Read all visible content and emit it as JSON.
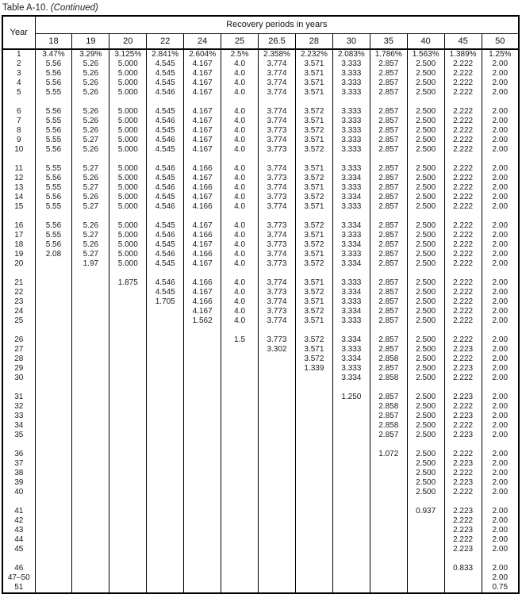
{
  "title": {
    "main": "Table A-10.",
    "continued": "(Continued)"
  },
  "table": {
    "year_header": "Year",
    "group_header": "Recovery periods in years",
    "columns": [
      "18",
      "19",
      "20",
      "22",
      "24",
      "25",
      "26.5",
      "28",
      "30",
      "35",
      "40",
      "45",
      "50"
    ],
    "groups": [
      {
        "rows": [
          {
            "year": "1",
            "values": [
              "3.47%",
              "3.29%",
              "3.125%",
              "2.841%",
              "2.604%",
              "2.5%",
              "2.358%",
              "2.232%",
              "2.083%",
              "1.786%",
              "1.563%",
              "1.389%",
              "1.25%"
            ]
          },
          {
            "year": "2",
            "values": [
              "5.56",
              "5.26",
              "5.000",
              "4.545",
              "4.167",
              "4.0",
              "3.774",
              "3.571",
              "3.333",
              "2.857",
              "2.500",
              "2.222",
              "2.00"
            ]
          },
          {
            "year": "3",
            "values": [
              "5.56",
              "5.26",
              "5.000",
              "4.545",
              "4.167",
              "4.0",
              "3.774",
              "3.571",
              "3.333",
              "2.857",
              "2.500",
              "2.222",
              "2.00"
            ]
          },
          {
            "year": "4",
            "values": [
              "5.56",
              "5.26",
              "5.000",
              "4.545",
              "4.167",
              "4.0",
              "3.774",
              "3.571",
              "3.333",
              "2.857",
              "2.500",
              "2.222",
              "2.00"
            ]
          },
          {
            "year": "5",
            "values": [
              "5.55",
              "5.26",
              "5.000",
              "4.546",
              "4.167",
              "4.0",
              "3.774",
              "3.571",
              "3.333",
              "2.857",
              "2.500",
              "2.222",
              "2.00"
            ]
          }
        ]
      },
      {
        "rows": [
          {
            "year": "6",
            "values": [
              "5.56",
              "5.26",
              "5.000",
              "4.545",
              "4.167",
              "4.0",
              "3.774",
              "3.572",
              "3.333",
              "2.857",
              "2.500",
              "2.222",
              "2.00"
            ]
          },
          {
            "year": "7",
            "values": [
              "5.55",
              "5.26",
              "5.000",
              "4.546",
              "4.167",
              "4.0",
              "3.774",
              "3.571",
              "3.333",
              "2.857",
              "2.500",
              "2.222",
              "2.00"
            ]
          },
          {
            "year": "8",
            "values": [
              "5.56",
              "5.26",
              "5.000",
              "4.545",
              "4.167",
              "4.0",
              "3.773",
              "3.572",
              "3.333",
              "2.857",
              "2.500",
              "2.222",
              "2.00"
            ]
          },
          {
            "year": "9",
            "values": [
              "5.55",
              "5.27",
              "5.000",
              "4.546",
              "4.167",
              "4.0",
              "3.774",
              "3.571",
              "3.333",
              "2.857",
              "2.500",
              "2.222",
              "2.00"
            ]
          },
          {
            "year": "10",
            "values": [
              "5.56",
              "5.26",
              "5.000",
              "4.545",
              "4.167",
              "4.0",
              "3.773",
              "3.572",
              "3.333",
              "2.857",
              "2.500",
              "2.222",
              "2.00"
            ]
          }
        ]
      },
      {
        "rows": [
          {
            "year": "11",
            "values": [
              "5.55",
              "5.27",
              "5.000",
              "4.546",
              "4.166",
              "4.0",
              "3.774",
              "3.571",
              "3.333",
              "2.857",
              "2.500",
              "2.222",
              "2.00"
            ]
          },
          {
            "year": "12",
            "values": [
              "5.56",
              "5.26",
              "5.000",
              "4.545",
              "4.167",
              "4.0",
              "3.773",
              "3.572",
              "3.334",
              "2.857",
              "2.500",
              "2.222",
              "2.00"
            ]
          },
          {
            "year": "13",
            "values": [
              "5.55",
              "5.27",
              "5.000",
              "4.546",
              "4.166",
              "4.0",
              "3.774",
              "3.571",
              "3.333",
              "2.857",
              "2.500",
              "2.222",
              "2.00"
            ]
          },
          {
            "year": "14",
            "values": [
              "5.56",
              "5.26",
              "5.000",
              "4.545",
              "4.167",
              "4.0",
              "3.773",
              "3.572",
              "3.334",
              "2.857",
              "2.500",
              "2.222",
              "2.00"
            ]
          },
          {
            "year": "15",
            "values": [
              "5.55",
              "5.27",
              "5.000",
              "4.546",
              "4.166",
              "4.0",
              "3.774",
              "3.571",
              "3.333",
              "2.857",
              "2.500",
              "2.222",
              "2.00"
            ]
          }
        ]
      },
      {
        "rows": [
          {
            "year": "16",
            "values": [
              "5.56",
              "5.26",
              "5.000",
              "4.545",
              "4.167",
              "4.0",
              "3.773",
              "3.572",
              "3.334",
              "2.857",
              "2.500",
              "2.222",
              "2.00"
            ]
          },
          {
            "year": "17",
            "values": [
              "5.55",
              "5.27",
              "5.000",
              "4.546",
              "4.166",
              "4.0",
              "3.774",
              "3.571",
              "3.333",
              "2.857",
              "2.500",
              "2.222",
              "2.00"
            ]
          },
          {
            "year": "18",
            "values": [
              "5.56",
              "5.26",
              "5.000",
              "4.545",
              "4.167",
              "4.0",
              "3.773",
              "3.572",
              "3.334",
              "2.857",
              "2.500",
              "2.222",
              "2.00"
            ]
          },
          {
            "year": "19",
            "values": [
              "2.08",
              "5.27",
              "5.000",
              "4.546",
              "4.166",
              "4.0",
              "3.774",
              "3.571",
              "3.333",
              "2.857",
              "2.500",
              "2.222",
              "2.00"
            ]
          },
          {
            "year": "20",
            "values": [
              "",
              "1.97",
              "5.000",
              "4.545",
              "4.167",
              "4.0",
              "3.773",
              "3.572",
              "3.334",
              "2.857",
              "2.500",
              "2.222",
              "2.00"
            ]
          }
        ]
      },
      {
        "rows": [
          {
            "year": "21",
            "values": [
              "",
              "",
              "1.875",
              "4.546",
              "4.166",
              "4.0",
              "3.774",
              "3.571",
              "3.333",
              "2.857",
              "2.500",
              "2.222",
              "2.00"
            ]
          },
          {
            "year": "22",
            "values": [
              "",
              "",
              "",
              "4.545",
              "4.167",
              "4.0",
              "3.773",
              "3.572",
              "3.334",
              "2.857",
              "2.500",
              "2.222",
              "2.00"
            ]
          },
          {
            "year": "23",
            "values": [
              "",
              "",
              "",
              "1.705",
              "4.166",
              "4.0",
              "3.774",
              "3.571",
              "3.333",
              "2.857",
              "2.500",
              "2.222",
              "2.00"
            ]
          },
          {
            "year": "24",
            "values": [
              "",
              "",
              "",
              "",
              "4.167",
              "4.0",
              "3.773",
              "3.572",
              "3.334",
              "2.857",
              "2.500",
              "2.222",
              "2.00"
            ]
          },
          {
            "year": "25",
            "values": [
              "",
              "",
              "",
              "",
              "1.562",
              "4.0",
              "3.774",
              "3.571",
              "3.333",
              "2.857",
              "2.500",
              "2.222",
              "2.00"
            ]
          }
        ]
      },
      {
        "rows": [
          {
            "year": "26",
            "values": [
              "",
              "",
              "",
              "",
              "",
              "1.5",
              "3.773",
              "3.572",
              "3.334",
              "2.857",
              "2.500",
              "2.222",
              "2.00"
            ]
          },
          {
            "year": "27",
            "values": [
              "",
              "",
              "",
              "",
              "",
              "",
              "3.302",
              "3.571",
              "3.333",
              "2.857",
              "2.500",
              "2.223",
              "2.00"
            ]
          },
          {
            "year": "28",
            "values": [
              "",
              "",
              "",
              "",
              "",
              "",
              "",
              "3.572",
              "3.334",
              "2.858",
              "2.500",
              "2.222",
              "2.00"
            ]
          },
          {
            "year": "29",
            "values": [
              "",
              "",
              "",
              "",
              "",
              "",
              "",
              "1.339",
              "3.333",
              "2.857",
              "2.500",
              "2.223",
              "2.00"
            ]
          },
          {
            "year": "30",
            "values": [
              "",
              "",
              "",
              "",
              "",
              "",
              "",
              "",
              "3.334",
              "2.858",
              "2.500",
              "2.222",
              "2.00"
            ]
          }
        ]
      },
      {
        "rows": [
          {
            "year": "31",
            "values": [
              "",
              "",
              "",
              "",
              "",
              "",
              "",
              "",
              "1.250",
              "2.857",
              "2.500",
              "2.223",
              "2.00"
            ]
          },
          {
            "year": "32",
            "values": [
              "",
              "",
              "",
              "",
              "",
              "",
              "",
              "",
              "",
              "2.858",
              "2.500",
              "2.222",
              "2.00"
            ]
          },
          {
            "year": "33",
            "values": [
              "",
              "",
              "",
              "",
              "",
              "",
              "",
              "",
              "",
              "2.857",
              "2.500",
              "2.223",
              "2.00"
            ]
          },
          {
            "year": "34",
            "values": [
              "",
              "",
              "",
              "",
              "",
              "",
              "",
              "",
              "",
              "2.858",
              "2.500",
              "2.222",
              "2.00"
            ]
          },
          {
            "year": "35",
            "values": [
              "",
              "",
              "",
              "",
              "",
              "",
              "",
              "",
              "",
              "2.857",
              "2.500",
              "2.223",
              "2.00"
            ]
          }
        ]
      },
      {
        "rows": [
          {
            "year": "36",
            "values": [
              "",
              "",
              "",
              "",
              "",
              "",
              "",
              "",
              "",
              "1.072",
              "2.500",
              "2.222",
              "2.00"
            ]
          },
          {
            "year": "37",
            "values": [
              "",
              "",
              "",
              "",
              "",
              "",
              "",
              "",
              "",
              "",
              "2.500",
              "2.223",
              "2.00"
            ]
          },
          {
            "year": "38",
            "values": [
              "",
              "",
              "",
              "",
              "",
              "",
              "",
              "",
              "",
              "",
              "2.500",
              "2.222",
              "2.00"
            ]
          },
          {
            "year": "39",
            "values": [
              "",
              "",
              "",
              "",
              "",
              "",
              "",
              "",
              "",
              "",
              "2.500",
              "2.223",
              "2.00"
            ]
          },
          {
            "year": "40",
            "values": [
              "",
              "",
              "",
              "",
              "",
              "",
              "",
              "",
              "",
              "",
              "2.500",
              "2.222",
              "2.00"
            ]
          }
        ]
      },
      {
        "rows": [
          {
            "year": "41",
            "values": [
              "",
              "",
              "",
              "",
              "",
              "",
              "",
              "",
              "",
              "",
              "0.937",
              "2.223",
              "2.00"
            ]
          },
          {
            "year": "42",
            "values": [
              "",
              "",
              "",
              "",
              "",
              "",
              "",
              "",
              "",
              "",
              "",
              "2.222",
              "2.00"
            ]
          },
          {
            "year": "43",
            "values": [
              "",
              "",
              "",
              "",
              "",
              "",
              "",
              "",
              "",
              "",
              "",
              "2.223",
              "2.00"
            ]
          },
          {
            "year": "44",
            "values": [
              "",
              "",
              "",
              "",
              "",
              "",
              "",
              "",
              "",
              "",
              "",
              "2.222",
              "2.00"
            ]
          },
          {
            "year": "45",
            "values": [
              "",
              "",
              "",
              "",
              "",
              "",
              "",
              "",
              "",
              "",
              "",
              "2.223",
              "2.00"
            ]
          }
        ]
      },
      {
        "rows": [
          {
            "year": "46",
            "values": [
              "",
              "",
              "",
              "",
              "",
              "",
              "",
              "",
              "",
              "",
              "",
              "0.833",
              "2.00"
            ]
          },
          {
            "year": "47–50",
            "values": [
              "",
              "",
              "",
              "",
              "",
              "",
              "",
              "",
              "",
              "",
              "",
              "",
              "2.00"
            ]
          },
          {
            "year": "51",
            "values": [
              "",
              "",
              "",
              "",
              "",
              "",
              "",
              "",
              "",
              "",
              "",
              "",
              "0.75"
            ]
          }
        ]
      }
    ]
  }
}
